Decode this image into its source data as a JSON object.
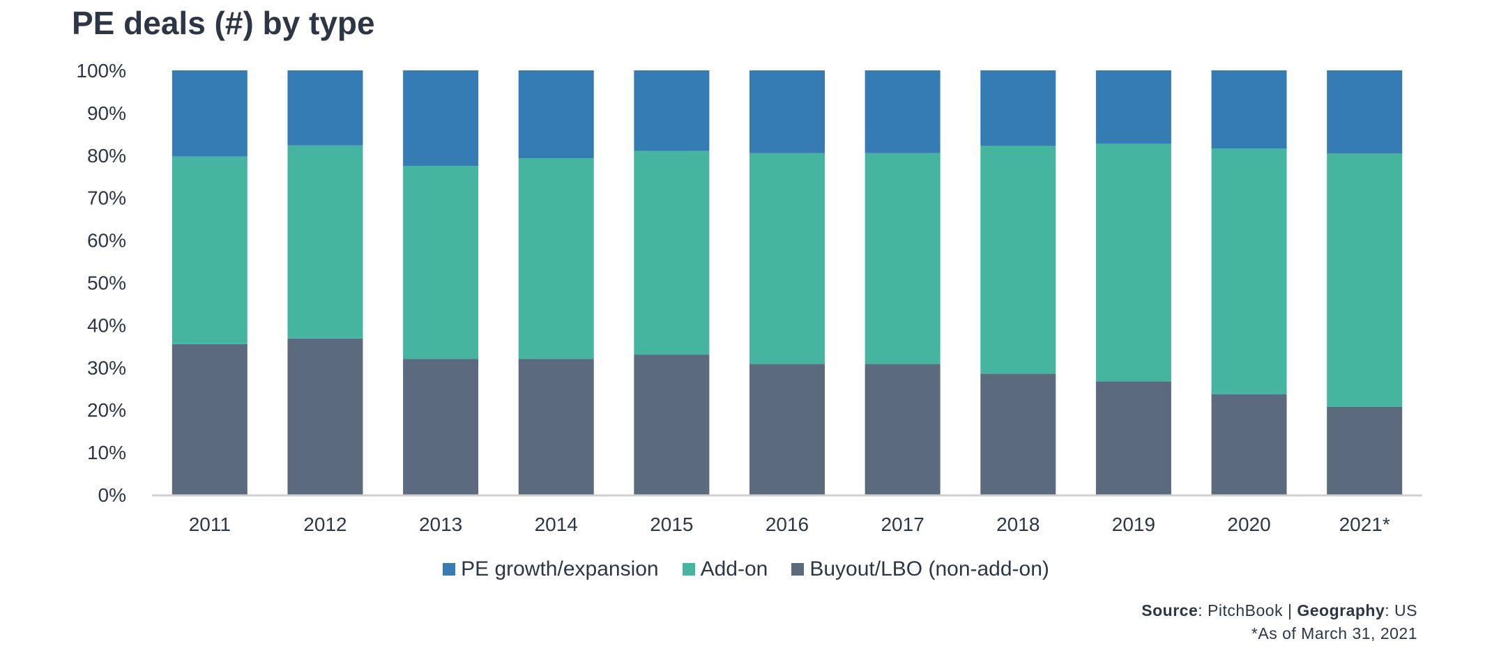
{
  "chart_data": {
    "type": "bar",
    "stacked": true,
    "percent": true,
    "title": "PE deals (#) by type",
    "categories": [
      "2011",
      "2012",
      "2013",
      "2014",
      "2015",
      "2016",
      "2017",
      "2018",
      "2019",
      "2020",
      "2021*"
    ],
    "series": [
      {
        "name": "Buyout/LBO (non-add-on)",
        "color": "#5b6b7d",
        "values": [
          35.5,
          36.8,
          32.0,
          32.0,
          33.0,
          30.8,
          30.8,
          28.5,
          26.7,
          23.7,
          20.7
        ]
      },
      {
        "name": "Add-on",
        "color": "#45b5a0",
        "values": [
          44.2,
          45.5,
          45.5,
          47.3,
          48.0,
          49.7,
          49.7,
          53.7,
          56.0,
          57.9,
          59.7
        ]
      },
      {
        "name": "PE growth/expansion",
        "color": "#367cb4",
        "values": [
          20.3,
          17.7,
          22.5,
          20.7,
          19.0,
          19.5,
          19.5,
          17.8,
          17.3,
          18.4,
          19.6
        ]
      }
    ],
    "ylim": [
      0,
      100
    ],
    "yticks": [
      "0%",
      "10%",
      "20%",
      "30%",
      "40%",
      "50%",
      "60%",
      "70%",
      "80%",
      "90%",
      "100%"
    ],
    "grid": false,
    "legend_position": "bottom"
  },
  "legend": [
    {
      "label": "PE growth/expansion",
      "color": "#367cb4"
    },
    {
      "label": "Add-on",
      "color": "#45b5a0"
    },
    {
      "label": "Buyout/LBO (non-add-on)",
      "color": "#5b6b7d"
    }
  ],
  "footer": {
    "source_label": "Source",
    "source_value": ": PitchBook | ",
    "geography_label": "Geography",
    "geography_value": ": US",
    "note": "*As of March 31, 2021"
  }
}
